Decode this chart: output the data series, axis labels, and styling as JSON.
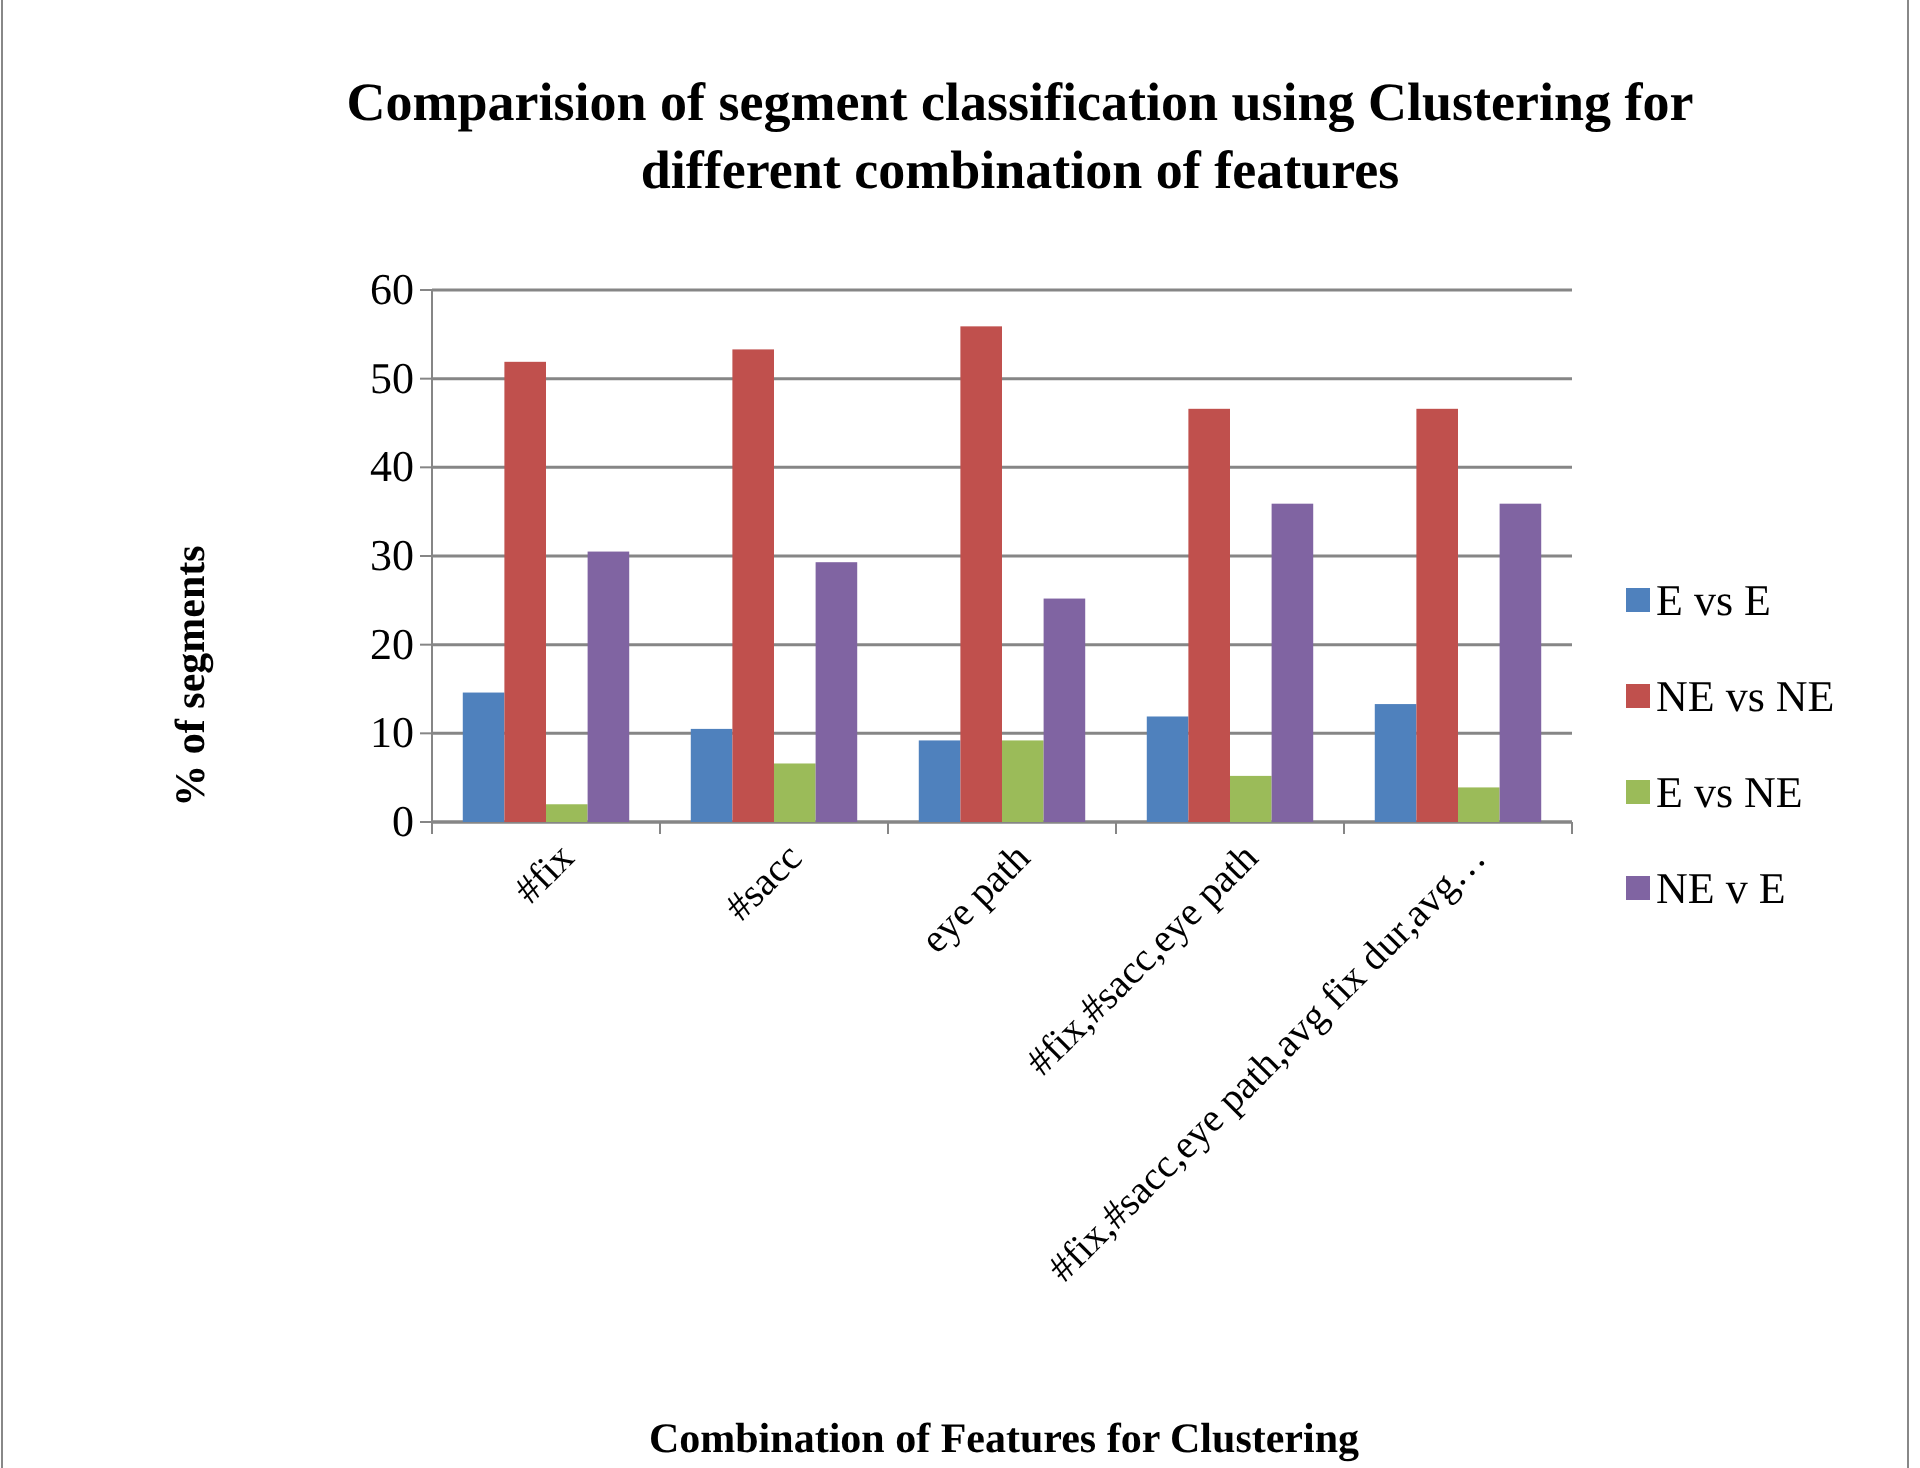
{
  "chart_data": {
    "type": "bar",
    "title": "Comparision of segment classification using Clustering for different combination of features",
    "xlabel": "Combination of Features for Clustering",
    "ylabel": "% of segments",
    "categories": [
      "#fix",
      "#sacc",
      "eye path",
      "#fix,#sacc,eye path",
      "#fix,#sacc,eye path,avg fix dur,avg…"
    ],
    "series": [
      {
        "name": "E vs E",
        "color": "#4f81bd",
        "values": [
          14.6,
          10.5,
          9.2,
          11.9,
          13.3
        ]
      },
      {
        "name": "NE vs NE",
        "color": "#c0504d",
        "values": [
          51.9,
          53.3,
          55.9,
          46.6,
          46.6
        ]
      },
      {
        "name": "E vs NE",
        "color": "#9bbb59",
        "values": [
          2.0,
          6.6,
          9.2,
          5.2,
          3.9
        ]
      },
      {
        "name": "NE v E",
        "color": "#8064a2",
        "values": [
          30.5,
          29.3,
          25.2,
          35.9,
          35.9
        ]
      }
    ],
    "ylim": [
      0,
      60
    ],
    "yticks": [
      0,
      10,
      20,
      30,
      40,
      50,
      60
    ],
    "grid": "y",
    "legend": "right"
  }
}
